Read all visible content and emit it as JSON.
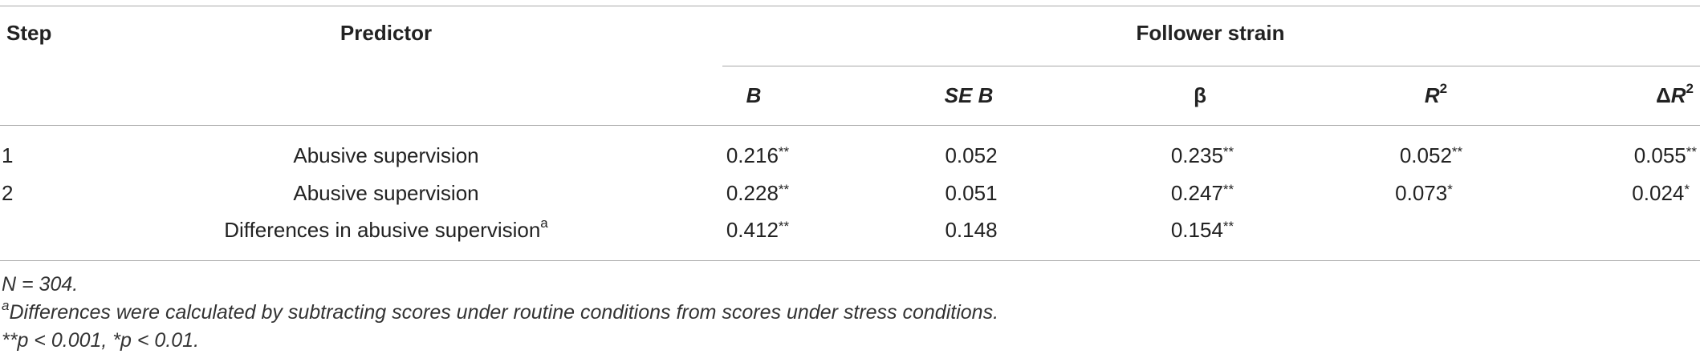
{
  "headers": {
    "step": "Step",
    "predictor": "Predictor",
    "group": "Follower strain",
    "cols": {
      "b": "B",
      "seb": "SE B",
      "beta": "β",
      "r2_main": "R",
      "r2_sup": "2",
      "dr2_delta": "Δ",
      "dr2_main": "R",
      "dr2_sup": "2"
    }
  },
  "rows": [
    {
      "step": "1",
      "predictor": "Abusive supervision",
      "predictor_sup": "",
      "b": "0.216",
      "b_star": "**",
      "seb": "0.052",
      "beta": "0.235",
      "beta_star": "**",
      "r2": "0.052",
      "r2_star": "**",
      "dr2": "0.055",
      "dr2_star": "**"
    },
    {
      "step": "2",
      "predictor": "Abusive supervision",
      "predictor_sup": "",
      "b": "0.228",
      "b_star": "**",
      "seb": "0.051",
      "beta": "0.247",
      "beta_star": "**",
      "r2": "0.073",
      "r2_star": "*",
      "dr2": "0.024",
      "dr2_star": "*"
    },
    {
      "step": "",
      "predictor": "Differences in abusive supervision",
      "predictor_sup": "a",
      "b": "0.412",
      "b_star": "**",
      "seb": "0.148",
      "beta": "0.154",
      "beta_star": "**",
      "r2": "",
      "r2_star": "",
      "dr2": "",
      "dr2_star": ""
    }
  ],
  "notes": {
    "n": "N = 304.",
    "a_sup": "a",
    "a_text": "Differences were calculated by subtracting scores under routine conditions from scores under stress conditions.",
    "p_text": "**p < 0.001, *p < 0.01."
  }
}
